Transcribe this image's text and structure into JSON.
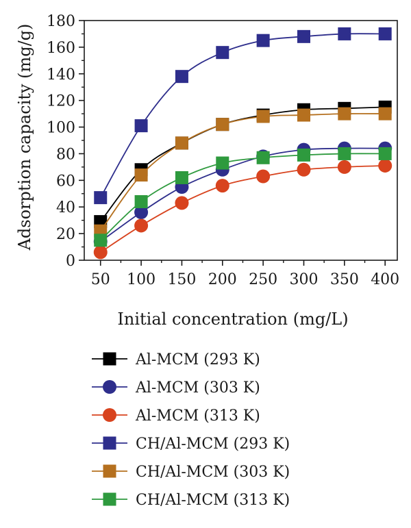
{
  "chart_data": {
    "type": "line",
    "title": "",
    "xlabel": "Initial concentration (mg/L)",
    "ylabel": "Adsorption capacity (mg/g)",
    "x": [
      50,
      100,
      150,
      200,
      250,
      300,
      350,
      400
    ],
    "xticks": [
      "50",
      "100",
      "150",
      "200",
      "250",
      "300",
      "350",
      "400"
    ],
    "yticks": [
      "0",
      "20",
      "40",
      "60",
      "80",
      "100",
      "120",
      "140",
      "160",
      "180"
    ],
    "xlim": [
      30,
      415
    ],
    "ylim": [
      0,
      180
    ],
    "legend_position": "bottom",
    "series": [
      {
        "name": "Al-MCM (293 K)",
        "marker": "square",
        "color": "#000000",
        "values": [
          29,
          68,
          88,
          102,
          109,
          113,
          114,
          115
        ]
      },
      {
        "name": "Al-MCM (303 K)",
        "marker": "circle",
        "color": "#2e2e8c",
        "values": [
          14,
          36,
          55,
          68,
          78,
          83,
          84,
          84
        ]
      },
      {
        "name": "Al-MCM (313 K)",
        "marker": "circle",
        "color": "#d8431e",
        "values": [
          6,
          26,
          43,
          56,
          63,
          68,
          70,
          71
        ]
      },
      {
        "name": "CH/Al-MCM (293 K)",
        "marker": "square",
        "color": "#2e2e8c",
        "values": [
          47,
          101,
          138,
          156,
          165,
          168,
          170,
          170
        ]
      },
      {
        "name": "CH/Al-MCM (303 K)",
        "marker": "square",
        "color": "#b5701f",
        "values": [
          22,
          64,
          88,
          102,
          108,
          109,
          110,
          110
        ]
      },
      {
        "name": "CH/Al-MCM (313 K)",
        "marker": "square",
        "color": "#2e9a3e",
        "values": [
          15,
          44,
          62,
          73,
          77,
          79,
          80,
          80
        ]
      }
    ]
  }
}
